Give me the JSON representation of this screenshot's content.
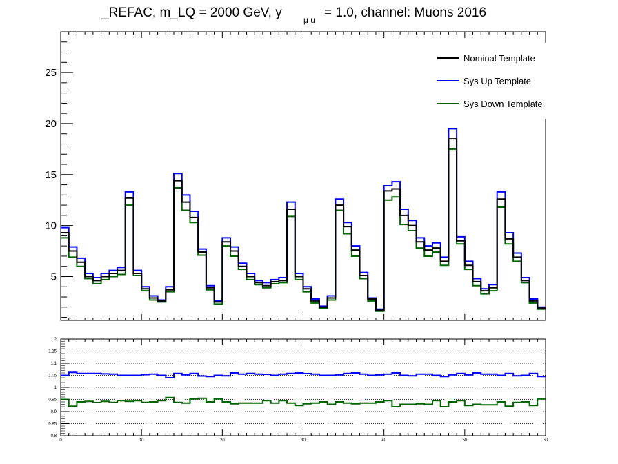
{
  "title": {
    "prefix": "_REFAC, m_LQ = 2000 GeV, y",
    "subscript": "μ u",
    "suffix": "= 1.0, channel: Muons 2016"
  },
  "chart_data": [
    {
      "type": "line",
      "style": "step histogram",
      "x_edges": [
        0,
        1,
        2,
        3,
        4,
        5,
        6,
        7,
        8,
        9,
        10,
        11,
        12,
        13,
        14,
        15,
        16,
        17,
        18,
        19,
        20,
        21,
        22,
        23,
        24,
        25,
        26,
        27,
        28,
        29,
        30,
        31,
        32,
        33,
        34,
        35,
        36,
        37,
        38,
        39,
        40,
        41,
        42,
        43,
        44,
        45,
        46,
        47,
        48,
        49,
        50,
        51,
        52,
        53,
        54,
        55,
        56,
        57,
        58,
        59,
        60
      ],
      "series": [
        {
          "name": "Nominal Template",
          "color": "#000000",
          "values": [
            9.3,
            7.5,
            6.4,
            5.0,
            4.6,
            5.0,
            5.3,
            5.6,
            12.7,
            5.3,
            3.8,
            2.9,
            2.6,
            3.7,
            14.4,
            12.3,
            10.8,
            7.4,
            3.9,
            2.5,
            8.4,
            7.5,
            6.0,
            5.0,
            4.4,
            4.1,
            4.5,
            4.6,
            11.6,
            5.0,
            3.8,
            2.6,
            2.0,
            2.9,
            12.0,
            9.9,
            7.6,
            5.1,
            2.8,
            1.7,
            13.4,
            13.6,
            11.0,
            10.0,
            8.4,
            7.6,
            7.8,
            6.5,
            18.5,
            8.5,
            6.1,
            4.5,
            3.6,
            3.9,
            12.6,
            8.7,
            6.9,
            4.6,
            2.6,
            1.9
          ]
        },
        {
          "name": "Sys Up Template",
          "color": "#0000ff",
          "values": [
            9.8,
            7.9,
            6.8,
            5.3,
            4.9,
            5.3,
            5.6,
            5.9,
            13.3,
            5.6,
            4.0,
            3.1,
            2.7,
            4.0,
            15.1,
            13.0,
            11.4,
            7.7,
            4.1,
            2.6,
            8.8,
            7.9,
            6.3,
            5.3,
            4.6,
            4.4,
            4.7,
            4.9,
            12.3,
            5.3,
            4.0,
            2.8,
            2.1,
            3.1,
            12.6,
            10.3,
            8.0,
            5.4,
            2.9,
            1.8,
            13.9,
            14.3,
            11.6,
            10.5,
            8.8,
            8.0,
            8.3,
            6.9,
            19.5,
            8.9,
            6.5,
            4.8,
            3.8,
            4.2,
            13.3,
            9.3,
            7.3,
            4.9,
            2.8,
            2.0
          ]
        },
        {
          "name": "Sys Down Template",
          "color": "#006400",
          "values": [
            8.8,
            6.9,
            6.0,
            4.8,
            4.3,
            4.7,
            5.0,
            5.2,
            12.0,
            5.1,
            3.6,
            2.7,
            2.5,
            3.5,
            13.7,
            11.5,
            10.3,
            7.1,
            3.7,
            2.3,
            8.0,
            7.0,
            5.7,
            4.7,
            4.2,
            3.9,
            4.3,
            4.4,
            10.9,
            4.7,
            3.5,
            2.4,
            1.9,
            2.7,
            11.5,
            9.2,
            7.0,
            4.8,
            2.6,
            1.6,
            12.5,
            12.8,
            10.1,
            9.5,
            7.8,
            7.0,
            7.4,
            6.1,
            17.5,
            8.2,
            5.7,
            4.1,
            3.3,
            3.6,
            11.8,
            8.2,
            6.5,
            4.4,
            2.4,
            1.8
          ]
        }
      ],
      "ylim": [
        0.7,
        29
      ],
      "y_ticks": [
        5,
        10,
        15,
        20,
        25
      ],
      "xlim": [
        0,
        60
      ],
      "legend_position": "top-right",
      "grid": false
    },
    {
      "type": "line",
      "style": "step histogram (ratio)",
      "x_edges": [
        0,
        1,
        2,
        3,
        4,
        5,
        6,
        7,
        8,
        9,
        10,
        11,
        12,
        13,
        14,
        15,
        16,
        17,
        18,
        19,
        20,
        21,
        22,
        23,
        24,
        25,
        26,
        27,
        28,
        29,
        30,
        31,
        32,
        33,
        34,
        35,
        36,
        37,
        38,
        39,
        40,
        41,
        42,
        43,
        44,
        45,
        46,
        47,
        48,
        49,
        50,
        51,
        52,
        53,
        54,
        55,
        56,
        57,
        58,
        59,
        60
      ],
      "series": [
        {
          "name": "Sys Up Template",
          "color": "#0000ff",
          "values": [
            1.05,
            1.062,
            1.058,
            1.058,
            1.058,
            1.056,
            1.055,
            1.05,
            1.05,
            1.05,
            1.053,
            1.055,
            1.05,
            1.04,
            1.058,
            1.052,
            1.058,
            1.047,
            1.045,
            1.05,
            1.048,
            1.06,
            1.055,
            1.058,
            1.055,
            1.054,
            1.05,
            1.055,
            1.058,
            1.06,
            1.057,
            1.055,
            1.05,
            1.05,
            1.052,
            1.058,
            1.06,
            1.055,
            1.05,
            1.052,
            1.055,
            1.06,
            1.05,
            1.048,
            1.055,
            1.055,
            1.05,
            1.045,
            1.052,
            1.058,
            1.052,
            1.06,
            1.055,
            1.055,
            1.05,
            1.058,
            1.048,
            1.05,
            1.058,
            1.045
          ]
        },
        {
          "name": "Sys Down Template",
          "color": "#006400",
          "values": [
            0.95,
            0.922,
            0.94,
            0.942,
            0.937,
            0.942,
            0.938,
            0.945,
            0.942,
            0.945,
            0.938,
            0.94,
            0.945,
            0.958,
            0.938,
            0.935,
            0.952,
            0.955,
            0.94,
            0.952,
            0.94,
            0.932,
            0.935,
            0.935,
            0.935,
            0.945,
            0.935,
            0.945,
            0.935,
            0.925,
            0.932,
            0.935,
            0.94,
            0.93,
            0.94,
            0.935,
            0.932,
            0.935,
            0.935,
            0.94,
            0.945,
            0.92,
            0.93,
            0.93,
            0.932,
            0.93,
            0.945,
            0.92,
            0.94,
            0.945,
            0.925,
            0.93,
            0.928,
            0.928,
            0.94,
            0.922,
            0.938,
            0.94,
            0.925,
            0.952
          ]
        }
      ],
      "ylim": [
        0.8,
        1.2
      ],
      "y_ticks": [
        0.8,
        0.85,
        0.9,
        0.95,
        1,
        1.05,
        1.1,
        1.15,
        1.2
      ],
      "y_tick_labels": [
        "0.8",
        "0.85",
        "0.9",
        "0.95",
        "1",
        "1.05",
        "1.1",
        "1.15",
        "1.2"
      ],
      "x_ticks": [
        0,
        10,
        20,
        30,
        40,
        50,
        60
      ],
      "x_tick_labels": [
        "0",
        "10",
        "20",
        "30",
        "40",
        "50",
        "60"
      ],
      "xlim": [
        0,
        60
      ],
      "grid": "horizontal dotted"
    }
  ]
}
